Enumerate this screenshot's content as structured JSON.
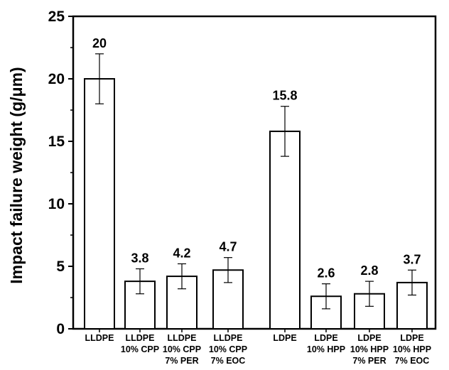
{
  "chart_data": {
    "type": "bar",
    "title": "",
    "xlabel": "",
    "ylabel": "Impact failure weight (g/μm)",
    "ylim": [
      0,
      25
    ],
    "yticks": [
      0,
      5,
      10,
      15,
      20,
      25
    ],
    "grid": false,
    "legend": "none",
    "colors": {
      "bar_fill": "#ffffff",
      "bar_stroke": "#000000",
      "axis": "#000000"
    },
    "categories": [
      [
        "LLDPE"
      ],
      [
        "LLDPE",
        "10% CPP"
      ],
      [
        "LLDPE",
        "10% CPP",
        "7% PER"
      ],
      [
        "LLDPE",
        "10% CPP",
        "7% EOC"
      ],
      [
        "LDPE"
      ],
      [
        "LDPE",
        "10% HPP"
      ],
      [
        "LDPE",
        "10% HPP",
        "7% PER"
      ],
      [
        "LDPE",
        "10% HPP",
        "7% EOC"
      ]
    ],
    "values": [
      20,
      3.8,
      4.2,
      4.7,
      15.8,
      2.6,
      2.8,
      3.7
    ],
    "value_labels": [
      "20",
      "3.8",
      "4.2",
      "4.7",
      "15.8",
      "2.6",
      "2.8",
      "3.7"
    ],
    "errors": [
      2.0,
      1.0,
      1.0,
      1.0,
      2.0,
      1.0,
      1.0,
      1.0
    ]
  }
}
